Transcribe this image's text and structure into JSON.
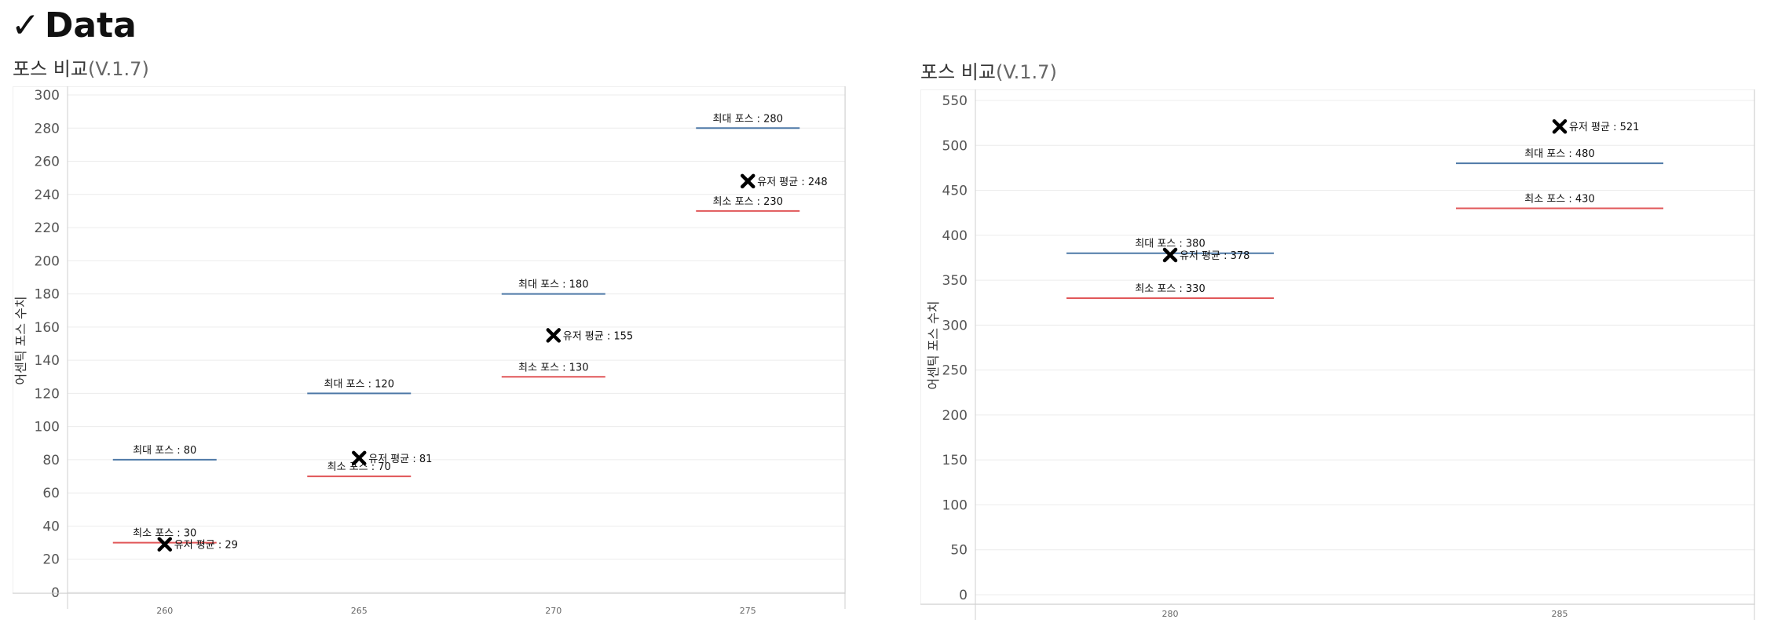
{
  "page": {
    "check_glyph": "✓",
    "title": "Data"
  },
  "colors": {
    "max_line": "#4e79a7",
    "min_line": "#e15759",
    "avg_marker": "#000000",
    "grid": "#ececec",
    "axis": "#cfcfcf"
  },
  "chart_data": [
    {
      "type": "scatter",
      "title": "포스 비교",
      "subtitle": "(V.1.7)",
      "ylabel": "어센틱 포스 수치",
      "xlabel": "",
      "grid": true,
      "legend": "none",
      "categories": [
        "260",
        "265",
        "270",
        "275"
      ],
      "ylim": [
        0,
        300
      ],
      "yticks": [
        0,
        20,
        40,
        60,
        80,
        100,
        120,
        140,
        160,
        180,
        200,
        220,
        240,
        260,
        280,
        300
      ],
      "series": [
        {
          "label_prefix": "최대 포스 : ",
          "marker": "line",
          "color_key": "max_line",
          "values": [
            80,
            120,
            180,
            280
          ]
        },
        {
          "label_prefix": "최소 포스 : ",
          "marker": "line",
          "color_key": "min_line",
          "values": [
            30,
            70,
            130,
            230
          ]
        },
        {
          "label_prefix": "유저 평균 : ",
          "marker": "x",
          "color_key": "avg_marker",
          "values": [
            29,
            81,
            155,
            248
          ]
        }
      ]
    },
    {
      "type": "scatter",
      "title": "포스 비교",
      "subtitle": "(V.1.7)",
      "ylabel": "어센틱 포스 수치",
      "xlabel": "",
      "grid": true,
      "legend": "none",
      "categories": [
        "280",
        "285"
      ],
      "ylim": [
        0,
        550
      ],
      "yticks": [
        0,
        50,
        100,
        150,
        200,
        250,
        300,
        350,
        400,
        450,
        500,
        550
      ],
      "series": [
        {
          "label_prefix": "최대 포스 : ",
          "marker": "line",
          "color_key": "max_line",
          "values": [
            380,
            480
          ]
        },
        {
          "label_prefix": "최소 포스 : ",
          "marker": "line",
          "color_key": "min_line",
          "values": [
            330,
            430
          ]
        },
        {
          "label_prefix": "유저 평균 : ",
          "marker": "x",
          "color_key": "avg_marker",
          "values": [
            378,
            521
          ]
        }
      ]
    }
  ]
}
